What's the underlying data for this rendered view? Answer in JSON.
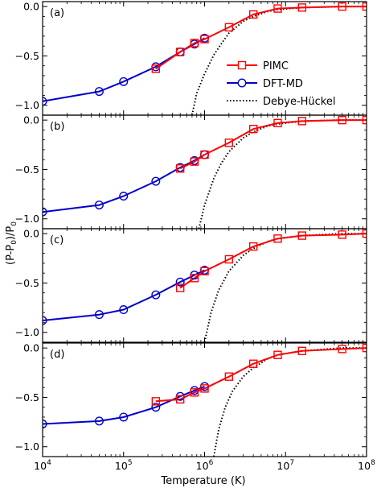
{
  "chart_data": {
    "type": "line",
    "xlabel": "Temperature (K)",
    "ylabel": "(P-P$_0$)/P$_0$",
    "ylabel_text": "(P-P",
    "ylabel_sub": "0",
    "ylabel_mid": ")/P",
    "xscale": "log",
    "xlim": [
      10000,
      100000000
    ],
    "ylim": [
      -1.1,
      0.05
    ],
    "xticks": [
      {
        "value": 10000,
        "base": "10",
        "exp": "4"
      },
      {
        "value": 100000,
        "base": "10",
        "exp": "5"
      },
      {
        "value": 1000000,
        "base": "10",
        "exp": "6"
      },
      {
        "value": 10000000,
        "base": "10",
        "exp": "7"
      },
      {
        "value": 100000000,
        "base": "10",
        "exp": "8"
      }
    ],
    "yticks": [
      {
        "value": 0.0,
        "label": "0.0"
      },
      {
        "value": -0.5,
        "label": "−0.5"
      },
      {
        "value": -1.0,
        "label": "−1.0"
      }
    ],
    "grid": false,
    "legend": {
      "panel": 0,
      "placement": "center-right",
      "entries": [
        {
          "name": "PIMC",
          "color": "#ff0000",
          "marker": "square",
          "line": "solid"
        },
        {
          "name": "DFT-MD",
          "color": "#0000cc",
          "marker": "circle",
          "line": "solid"
        },
        {
          "name": "Debye-Hückel",
          "color": "#000000",
          "marker": "none",
          "line": "dotted"
        }
      ]
    },
    "colors": {
      "pimc": "#ff0000",
      "dft": "#0000cc",
      "dh": "#000000"
    },
    "panels": [
      {
        "label": "(a)",
        "pimc": {
          "x": [
            250000,
            500000,
            750000,
            1000000,
            2000000,
            4000000,
            8000000,
            16000000,
            50000000,
            100000000
          ],
          "y": [
            -0.63,
            -0.46,
            -0.37,
            -0.33,
            -0.21,
            -0.08,
            -0.02,
            -0.01,
            0.0,
            0.0
          ]
        },
        "dft": {
          "x": [
            10000,
            50000,
            100000,
            250000,
            500000,
            750000,
            1000000
          ],
          "y": [
            -0.96,
            -0.86,
            -0.76,
            -0.61,
            -0.46,
            -0.38,
            -0.32
          ]
        },
        "dh": {
          "x": [
            700000,
            800000,
            1000000,
            1300000,
            1600000,
            2000000,
            3000000,
            4000000,
            6000000,
            8000000,
            16000000,
            50000000,
            100000000
          ],
          "y": [
            -1.1,
            -0.88,
            -0.68,
            -0.49,
            -0.38,
            -0.27,
            -0.15,
            -0.1,
            -0.05,
            -0.03,
            -0.01,
            0.0,
            0.0
          ]
        }
      },
      {
        "label": "(b)",
        "pimc": {
          "x": [
            500000,
            750000,
            1000000,
            2000000,
            4000000,
            8000000,
            16000000,
            50000000,
            100000000
          ],
          "y": [
            -0.49,
            -0.42,
            -0.35,
            -0.23,
            -0.09,
            -0.03,
            -0.01,
            0.0,
            0.0
          ]
        },
        "dft": {
          "x": [
            10000,
            50000,
            100000,
            250000,
            500000,
            750000,
            1000000
          ],
          "y": [
            -0.93,
            -0.86,
            -0.77,
            -0.62,
            -0.48,
            -0.41,
            -0.35
          ]
        },
        "dh": {
          "x": [
            850000,
            1000000,
            1300000,
            1600000,
            2000000,
            3000000,
            4000000,
            6000000,
            8000000,
            16000000,
            50000000,
            100000000
          ],
          "y": [
            -1.1,
            -0.86,
            -0.59,
            -0.44,
            -0.32,
            -0.18,
            -0.12,
            -0.06,
            -0.04,
            -0.01,
            0.0,
            0.0
          ]
        }
      },
      {
        "label": "(c)",
        "pimc": {
          "x": [
            500000,
            750000,
            1000000,
            2000000,
            4000000,
            8000000,
            16000000,
            50000000,
            100000000
          ],
          "y": [
            -0.55,
            -0.45,
            -0.38,
            -0.26,
            -0.13,
            -0.05,
            -0.02,
            -0.01,
            0.0
          ]
        },
        "dft": {
          "x": [
            10000,
            50000,
            100000,
            250000,
            500000,
            750000,
            1000000
          ],
          "y": [
            -0.88,
            -0.82,
            -0.77,
            -0.62,
            -0.49,
            -0.42,
            -0.37
          ]
        },
        "dh": {
          "x": [
            1000000,
            1200000,
            1500000,
            2000000,
            3000000,
            4000000,
            6000000,
            8000000,
            16000000,
            50000000,
            100000000
          ],
          "y": [
            -1.1,
            -0.8,
            -0.57,
            -0.38,
            -0.22,
            -0.15,
            -0.08,
            -0.05,
            -0.02,
            0.0,
            0.0
          ]
        }
      },
      {
        "label": "(d)",
        "pimc": {
          "x": [
            250000,
            500000,
            750000,
            1000000,
            2000000,
            4000000,
            8000000,
            16000000,
            50000000,
            100000000
          ],
          "y": [
            -0.54,
            -0.52,
            -0.45,
            -0.41,
            -0.29,
            -0.16,
            -0.07,
            -0.03,
            -0.01,
            0.0
          ]
        },
        "dft": {
          "x": [
            10000,
            50000,
            100000,
            250000,
            500000,
            750000,
            1000000
          ],
          "y": [
            -0.77,
            -0.74,
            -0.7,
            -0.6,
            -0.49,
            -0.43,
            -0.39
          ]
        },
        "dh": {
          "x": [
            1300000,
            1500000,
            1800000,
            2200000,
            3000000,
            4000000,
            6000000,
            8000000,
            16000000,
            50000000,
            100000000
          ],
          "y": [
            -1.1,
            -0.82,
            -0.6,
            -0.44,
            -0.29,
            -0.2,
            -0.11,
            -0.07,
            -0.03,
            0.0,
            0.0
          ]
        }
      }
    ]
  }
}
